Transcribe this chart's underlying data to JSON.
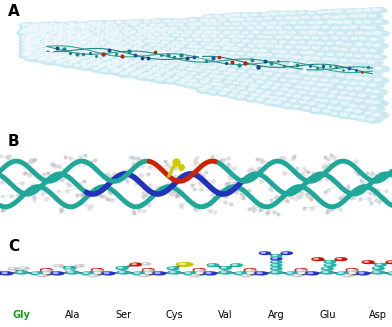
{
  "panel_labels": [
    "A",
    "B",
    "C"
  ],
  "panel_label_fontsize": 11,
  "panel_label_weight": "bold",
  "amino_acids": [
    "Gly",
    "Ala",
    "Ser",
    "Cys",
    "Val",
    "Arg",
    "Glu",
    "Asp"
  ],
  "aa_label_fontsize": 7,
  "gly_color": "#1a9e1a",
  "aa_color": "#000000",
  "background_color": "#ffffff",
  "water_sphere_color": "#c8e8f0",
  "water_sphere_hi": "#dff3f8",
  "collagen_color": "#1fa89a",
  "blue_chain_color": "#2233bb",
  "red_region_color": "#cc2200",
  "yellow_region_color": "#cccc00",
  "sidechain_color": "#d8d8d8",
  "atom_cyan": "#20b2aa",
  "atom_blue": "#2233cc",
  "atom_red": "#cc1100",
  "atom_white": "#c8c8c8",
  "atom_yellow": "#c8c800",
  "atom_dark": "#555555",
  "figsize": [
    3.92,
    3.27
  ],
  "dpi": 100
}
